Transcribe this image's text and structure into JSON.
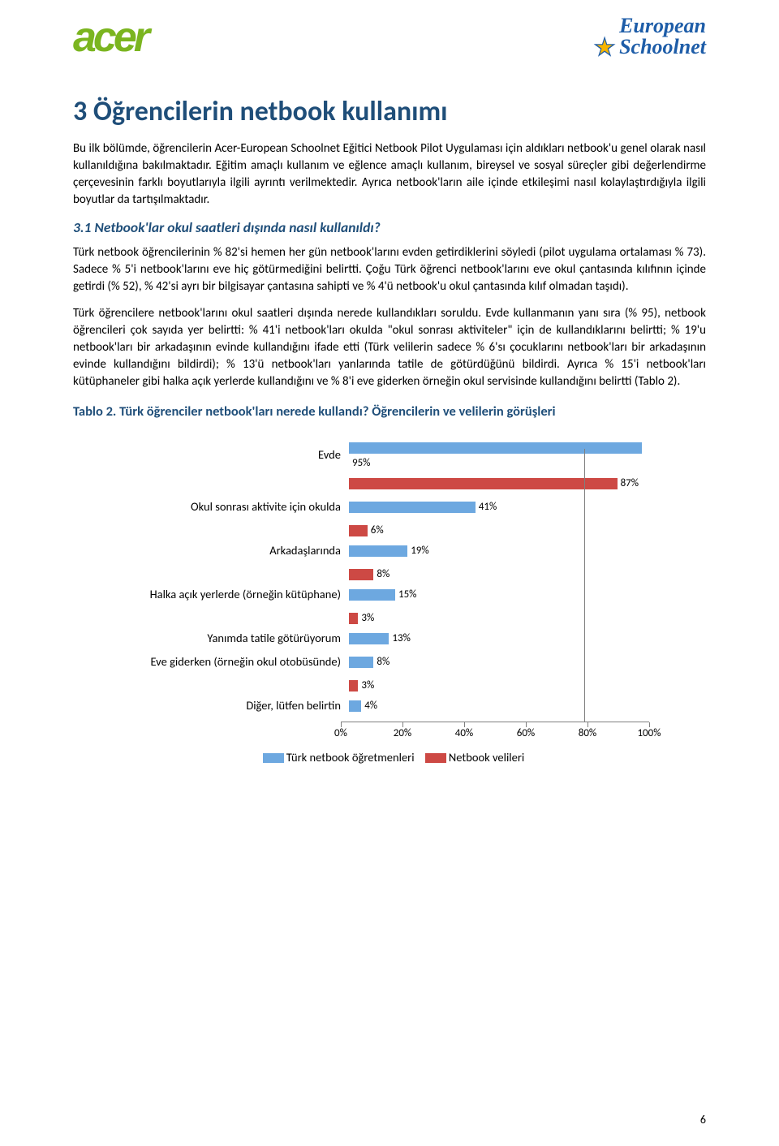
{
  "logos": {
    "acer": "acer",
    "eun_top": "European",
    "eun_bottom": "Schoolnet"
  },
  "h1": "3 Öğrencilerin netbook kullanımı",
  "p1": "Bu ilk bölümde, öğrencilerin Acer-European Schoolnet Eğitici Netbook Pilot Uygulaması için aldıkları netbook'u genel olarak nasıl kullanıldığına bakılmaktadır. Eğitim amaçlı kullanım ve eğlence amaçlı kullanım, bireysel ve sosyal süreçler gibi değerlendirme çerçevesinin farklı boyutlarıyla ilgili ayrıntı verilmektedir. Ayrıca netbook'ların aile içinde etkileşimi nasıl kolaylaştırdığıyla ilgili boyutlar da tartışılmaktadır.",
  "h2": "3.1 Netbook'lar okul saatleri dışında nasıl kullanıldı?",
  "p2": "Türk netbook öğrencilerinin % 82'si hemen her gün netbook'larını evden getirdiklerini söyledi (pilot uygulama ortalaması % 73). Sadece % 5'i netbook'larını eve hiç götürmediğini belirtti. Çoğu Türk öğrenci netbook'larını eve okul çantasında kılıfının içinde getirdi (% 52), % 42'si ayrı bir bilgisayar çantasına sahipti ve % 4'ü netbook'u okul çantasında kılıf olmadan taşıdı).",
  "p3": "Türk öğrencilere netbook'larını okul saatleri dışında nerede kullandıkları soruldu. Evde kullanmanın yanı sıra (% 95), netbook öğrencileri çok sayıda yer belirtti: % 41'i netbook'ları okulda \"okul sonrası aktiviteler\" için de kullandıklarını belirtti; % 19'u netbook'ları bir arkadaşının evinde kullandığını ifade etti (Türk velilerin sadece % 6'sı çocuklarını netbook'ları bir arkadaşının evinde kullandığını bildirdi); % 13'ü netbook'ları yanlarında tatile de götürdüğünü bildirdi. Ayrıca % 15'i netbook'ları kütüphaneler gibi halka açık yerlerde kullandığını ve % 8'i eve giderken örneğin okul servisinde kullandığını belirtti (Tablo 2).",
  "table_caption": "Tablo 2. Türk öğrenciler netbook'ları nerede kullandı? Öğrencilerin ve velilerin görüşleri",
  "chart": {
    "type": "bar-horizontal-grouped",
    "xlim": [
      0,
      100
    ],
    "xtick_step": 20,
    "axis_labels": [
      "0%",
      "20%",
      "40%",
      "60%",
      "80%",
      "100%"
    ],
    "legend": {
      "blue": "Türk netbook öğretmenleri",
      "red": "Netbook velileri"
    },
    "bar_colors": {
      "blue": "#6da8e0",
      "red": "#cd4944"
    },
    "categories": [
      {
        "label": "Evde",
        "blue": 95,
        "red": 87,
        "blue_txt": "95%",
        "red_txt": "87%"
      },
      {
        "label": "Okul sonrası aktivite için okulda",
        "blue": 41,
        "red": null,
        "blue_txt": "41%",
        "red_txt": ""
      },
      {
        "label": "Arkadaşlarında",
        "blue": 19,
        "red": 6,
        "blue_txt": "19%",
        "red_txt": "6%",
        "red_above": true
      },
      {
        "label": "Halka açık yerlerde (örneğin kütüphane)",
        "blue": 15,
        "red": 8,
        "blue_txt": "15%",
        "red_txt": "8%",
        "red_above": true
      },
      {
        "label": "Yanımda tatile götürüyorum",
        "blue": 13,
        "red": 3,
        "blue_txt": "13%",
        "red_txt": "3%",
        "red_above": true
      },
      {
        "label": "Eve giderken (örneğin okul otobüsünde)",
        "blue": 8,
        "red": null,
        "blue_txt": "8%",
        "red_txt": ""
      },
      {
        "label": "Diğer, lütfen belirtin",
        "blue": 4,
        "red": 3,
        "blue_txt": "4%",
        "red_txt": "3%",
        "red_above": true
      }
    ]
  },
  "page_number": "6"
}
